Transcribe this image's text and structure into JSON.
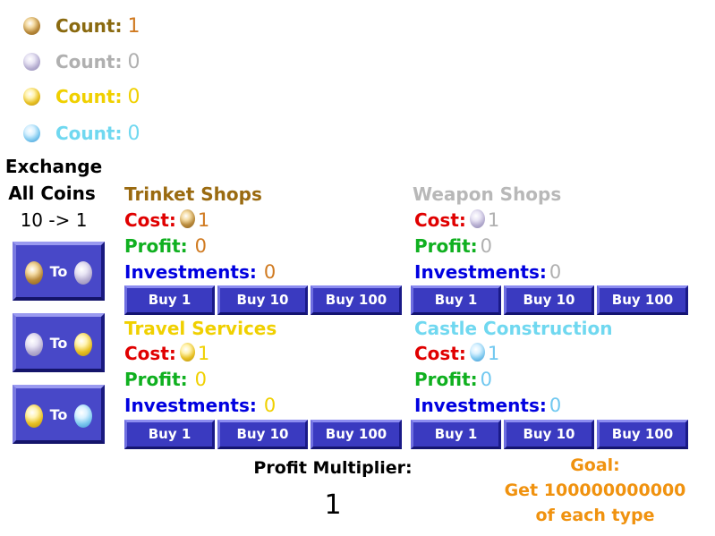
{
  "counts": [
    {
      "label": "Count:",
      "value": "1",
      "label_color": "#8a6a10",
      "value_color": "#d07a20",
      "coin": "bronze-coin"
    },
    {
      "label": "Count:",
      "value": "0",
      "label_color": "#b0b0b0",
      "value_color": "#b0b0b0",
      "coin": "silver-coin"
    },
    {
      "label": "Count:",
      "value": "0",
      "label_color": "#f0d000",
      "value_color": "#f0d000",
      "coin": "gold-coin"
    },
    {
      "label": "Count:",
      "value": "0",
      "label_color": "#70d8f0",
      "value_color": "#70d8f0",
      "coin": "diamond-coin"
    }
  ],
  "exchange": {
    "title_line1": "Exchange",
    "title_line2": "All Coins",
    "ratio": "10 -> 1",
    "buttons": [
      {
        "label": "To",
        "from": "bronze-coin",
        "to": "silver-coin"
      },
      {
        "label": "To",
        "from": "silver-coin",
        "to": "gold-coin"
      },
      {
        "label": "To",
        "from": "gold-coin",
        "to": "diamond-coin"
      }
    ]
  },
  "shops": [
    {
      "title": "Trinket Shops",
      "title_color": "#9a6a10",
      "coin": "bronze-coin",
      "cost_label": "Cost:",
      "cost": "1",
      "profit_label": "Profit:",
      "profit": "0",
      "investments_label": "Investments:",
      "investments": "0",
      "value_color": "#d07a20",
      "buttons": [
        "Buy 1",
        "Buy 10",
        "Buy 100"
      ]
    },
    {
      "title": "Weapon Shops",
      "title_color": "#b8b8b8",
      "coin": "silver-coin",
      "cost_label": "Cost:",
      "cost": "1",
      "profit_label": "Profit:",
      "profit": "0",
      "investments_label": "Investments:",
      "investments": "0",
      "value_color": "#b0b0b0",
      "buttons": [
        "Buy 1",
        "Buy 10",
        "Buy 100"
      ]
    },
    {
      "title": "Travel Services",
      "title_color": "#f0d000",
      "coin": "gold-coin",
      "cost_label": "Cost:",
      "cost": "1",
      "profit_label": "Profit:",
      "profit": "0",
      "investments_label": "Investments:",
      "investments": "0",
      "value_color": "#f0d000",
      "buttons": [
        "Buy 1",
        "Buy 10",
        "Buy 100"
      ]
    },
    {
      "title": "Castle Construction",
      "title_color": "#70d8f0",
      "coin": "diamond-coin",
      "cost_label": "Cost:",
      "cost": "1",
      "profit_label": "Profit:",
      "profit": "0",
      "investments_label": "Investments:",
      "investments": "0",
      "value_color": "#70c8f0",
      "buttons": [
        "Buy 1",
        "Buy 10",
        "Buy 100"
      ]
    }
  ],
  "colors": {
    "cost": "#e00000",
    "profit": "#10b020",
    "investments": "#0000e0",
    "button": "#3a3ac0",
    "goal": "#f0920f"
  },
  "multiplier": {
    "label": "Profit Multiplier:",
    "value": "1"
  },
  "goal": {
    "line1": "Goal:",
    "line2": "Get 100000000000",
    "line3": "of each type"
  }
}
